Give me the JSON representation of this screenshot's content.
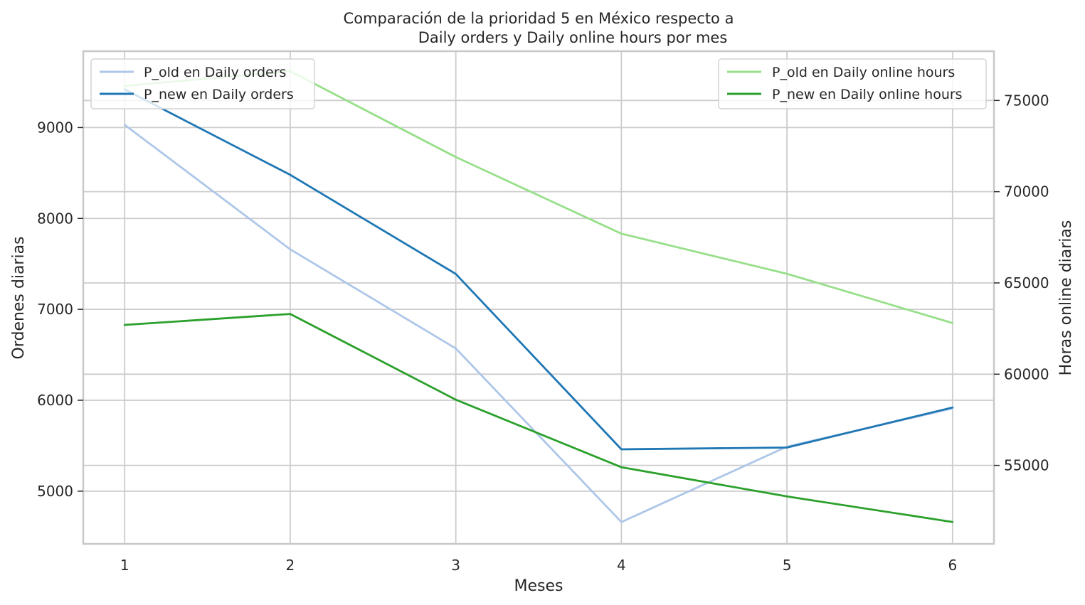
{
  "chart_data": {
    "type": "line",
    "title_line1": "Comparación de la prioridad 5 en México respecto a",
    "title_line2": "Daily orders y Daily online hours por mes",
    "xlabel": "Meses",
    "ylabel_left": "Ordenes diarias",
    "ylabel_right": "Horas online diarias",
    "x": [
      1,
      2,
      3,
      4,
      5,
      6
    ],
    "x_ticks": [
      "1",
      "2",
      "3",
      "4",
      "5",
      "6"
    ],
    "xlim": [
      0.75,
      6.25
    ],
    "left_axis": {
      "ylim": [
        4420,
        9840
      ],
      "ticks": [
        5000,
        6000,
        7000,
        8000,
        9000
      ],
      "tick_labels": [
        "5000",
        "6000",
        "7000",
        "8000",
        "9000"
      ]
    },
    "right_axis": {
      "ylim": [
        50700,
        77700
      ],
      "ticks": [
        55000,
        60000,
        65000,
        70000,
        75000
      ],
      "tick_labels": [
        "55000",
        "60000",
        "65000",
        "70000",
        "75000"
      ]
    },
    "series": [
      {
        "name": "P_old en Daily orders",
        "axis": "left",
        "color": "#aec7e8",
        "values": [
          9030,
          7660,
          6570,
          4660,
          5490,
          5910
        ]
      },
      {
        "name": "P_new en Daily orders",
        "axis": "left",
        "color": "#1f77b4",
        "values": [
          9420,
          8480,
          7390,
          5460,
          5480,
          5920
        ]
      },
      {
        "name": "P_old en Daily online hours",
        "axis": "right",
        "color": "#98df8a",
        "values": [
          75800,
          76600,
          71900,
          67700,
          65500,
          62800
        ]
      },
      {
        "name": "P_new en Daily online hours",
        "axis": "right",
        "color": "#2ca02c",
        "values": [
          62700,
          63300,
          58600,
          54900,
          53300,
          51900
        ]
      }
    ],
    "legend_left_placement": "upper-left",
    "legend_right_placement": "upper-right",
    "grid": true
  }
}
